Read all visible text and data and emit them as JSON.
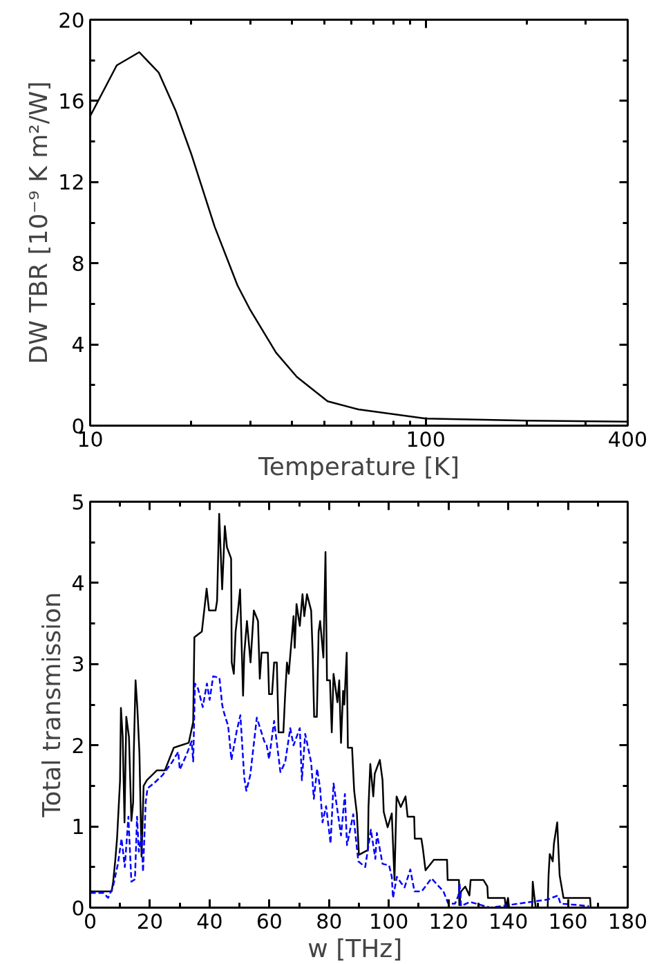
{
  "chart_data": [
    {
      "type": "line",
      "xlabel": "Temperature [K]",
      "ylabel": "DW TBR [10⁻⁹ K m²/W]",
      "log": "x",
      "xlim": [
        10,
        400
      ],
      "ylim": [
        0,
        20
      ],
      "xticks": [
        10,
        100,
        400
      ],
      "yticks": [
        0,
        4,
        8,
        12,
        16,
        20
      ],
      "series": [
        {
          "color": "#000000",
          "line_style": "solid",
          "x": [
            10,
            12,
            14,
            16,
            18,
            20,
            23.5,
            27.5,
            30,
            35.8,
            41.3,
            51,
            63,
            100,
            200,
            400
          ],
          "values": [
            15.25,
            17.75,
            18.4,
            17.4,
            15.5,
            13.4,
            9.8,
            6.9,
            5.7,
            3.6,
            2.4,
            1.2,
            0.8,
            0.35,
            0.25,
            0.2
          ]
        }
      ]
    },
    {
      "type": "line",
      "xlabel": "w  [THz]",
      "ylabel": "Total transmission",
      "xlim": [
        0,
        180
      ],
      "ylim": [
        0,
        5
      ],
      "xticks": [
        0,
        20,
        40,
        60,
        80,
        100,
        120,
        140,
        160,
        180
      ],
      "yticks": [
        0,
        1,
        2,
        3,
        4,
        5
      ],
      "series": [
        {
          "color": "#000000",
          "line_style": "solid",
          "x": [
            0,
            7.2,
            7.7,
            8.4,
            9,
            10,
            10.3,
            10.9,
            11.5,
            12.1,
            13,
            13.8,
            14.4,
            14.6,
            15.2,
            15.8,
            16.5,
            17.2,
            17.9,
            19,
            22.3,
            25,
            28,
            33,
            34.5,
            34.9,
            37.4,
            39,
            39.8,
            42,
            42.5,
            43.2,
            44.2,
            45.1,
            45.8,
            47.2,
            47.4,
            48.1,
            48.7,
            49.5,
            50.2,
            51.2,
            51.6,
            52.5,
            53.7,
            54.8,
            56.2,
            56.8,
            57.4,
            59.5,
            59.9,
            60.9,
            61.6,
            62.5,
            63.1,
            64.7,
            65.3,
            65.9,
            66.5,
            68.1,
            68.5,
            69.1,
            70.2,
            71.1,
            71.7,
            72.6,
            74,
            74.5,
            75,
            75.9,
            76.5,
            77,
            78.1,
            78.8,
            79.3,
            80.3,
            80.9,
            81.5,
            82.8,
            83.4,
            84,
            84.7,
            85.1,
            85.9,
            86.3,
            87.7,
            88.4,
            89.3,
            90,
            93,
            93.2,
            93.8,
            94.8,
            95.3,
            97,
            97.9,
            98.3,
            99.6,
            101,
            101.9,
            102.6,
            104,
            105.6,
            106.3,
            108.5,
            108.7,
            110.9,
            111.4,
            112.3,
            115.1,
            119.5,
            119.7,
            123.5,
            123.6,
            124.2,
            125.6,
            127,
            127.4,
            131.7,
            133,
            133.2,
            138.8,
            139.2,
            139.9,
            140.3,
            148,
            148.2,
            148.7,
            149.2,
            153.2,
            153.5,
            153.9,
            154.9,
            155.3,
            156.4,
            157.2,
            158.5,
            167.4,
            167.6,
            170
          ],
          "values": [
            0.2,
            0.2,
            0.32,
            0.58,
            0.85,
            1.56,
            2.46,
            2.1,
            1.05,
            2.35,
            2.1,
            1.07,
            1.3,
            1.9,
            2.8,
            2.46,
            1.9,
            0.63,
            1.5,
            1.57,
            1.69,
            1.69,
            1.97,
            2.03,
            2.29,
            3.33,
            3.4,
            3.93,
            3.66,
            3.66,
            3.78,
            4.85,
            3.92,
            4.7,
            4.44,
            4.3,
            3.02,
            2.88,
            3.4,
            3.66,
            3.92,
            2.61,
            3.13,
            3.53,
            3.02,
            3.66,
            3.53,
            2.82,
            3.14,
            3.14,
            2.63,
            2.63,
            3.02,
            3.02,
            2.16,
            2.16,
            2.63,
            3.02,
            2.88,
            3.59,
            3.2,
            3.74,
            3.47,
            3.86,
            3.59,
            3.86,
            3.66,
            3.14,
            2.35,
            2.35,
            3.4,
            3.53,
            3.08,
            4.38,
            2.8,
            2.8,
            2.16,
            2.88,
            2.53,
            2.8,
            2.03,
            2.67,
            2.5,
            3.14,
            1.97,
            1.97,
            1.44,
            1.16,
            0.65,
            0.71,
            1.24,
            1.77,
            1.37,
            1.65,
            1.82,
            1.57,
            1.18,
            0.99,
            1.16,
            0.34,
            1.37,
            1.24,
            1.37,
            1.12,
            1.12,
            0.85,
            0.85,
            0.73,
            0.46,
            0.59,
            0.59,
            0.34,
            0.34,
            0.03,
            0.2,
            0.26,
            0.15,
            0.34,
            0.34,
            0.26,
            0.12,
            0.12,
            0,
            0.12,
            0,
            0,
            0.32,
            0.15,
            0,
            0,
            0.4,
            0.66,
            0.57,
            0.79,
            1.05,
            0.4,
            0.12,
            0.12,
            0,
            0
          ]
        },
        {
          "color": "#0000ff",
          "line_style": "dashed",
          "x": [
            0,
            4.5,
            6,
            7.6,
            9.3,
            10.5,
            11.6,
            12.8,
            13.8,
            15,
            15.7,
            16.3,
            17.2,
            17.7,
            18.6,
            19.2,
            21.3,
            24.2,
            27.4,
            29.5,
            30,
            32.1,
            34,
            34.5,
            35.1,
            36.1,
            37.7,
            39.1,
            40,
            41.2,
            43.3,
            44.2,
            44.6,
            45.4,
            46.2,
            47.3,
            49.1,
            50.3,
            51.6,
            52.3,
            53.6,
            55.8,
            58.3,
            59.1,
            59.9,
            61.6,
            63.7,
            65.3,
            67,
            68.1,
            70.2,
            70.9,
            72,
            74,
            74.9,
            76,
            77,
            77.8,
            79,
            80.5,
            81.5,
            84,
            85.3,
            86,
            88.1,
            89.8,
            92.1,
            94,
            95.5,
            96,
            97.9,
            100.1,
            101,
            101.4,
            102.7,
            104,
            105.3,
            107.2,
            108.6,
            111,
            114.3,
            118.3,
            119.9,
            122.2,
            123.3,
            123.7,
            124.2,
            127.2,
            134,
            153.2,
            156.6,
            157.5,
            167
          ],
          "values": [
            0.18,
            0.18,
            0.12,
            0.25,
            0.54,
            0.85,
            0.5,
            1.12,
            0.32,
            0.35,
            1.12,
            0.69,
            0.89,
            0.44,
            1.3,
            1.47,
            1.53,
            1.63,
            1.79,
            1.92,
            1.7,
            1.87,
            2.05,
            1.8,
            2.76,
            2.7,
            2.47,
            2.76,
            2.56,
            2.85,
            2.83,
            2.5,
            2.43,
            2.33,
            2.24,
            1.82,
            2.18,
            2.37,
            1.6,
            1.44,
            1.63,
            2.34,
            2.05,
            2.0,
            1.83,
            2.3,
            1.67,
            1.79,
            2.21,
            2.0,
            2.21,
            1.57,
            2.14,
            1.79,
            1.34,
            1.71,
            1.47,
            1.05,
            1.25,
            0.79,
            1.53,
            0.89,
            1.4,
            0.77,
            1.15,
            0.57,
            0.5,
            0.96,
            0.6,
            0.92,
            0.54,
            0.52,
            0.38,
            0.12,
            0.38,
            0.31,
            0.25,
            0.47,
            0.2,
            0.2,
            0.36,
            0.2,
            0.05,
            0.05,
            0.15,
            0.3,
            0.02,
            0.07,
            0,
            0.1,
            0.15,
            0.05,
            0.02
          ]
        }
      ]
    }
  ]
}
